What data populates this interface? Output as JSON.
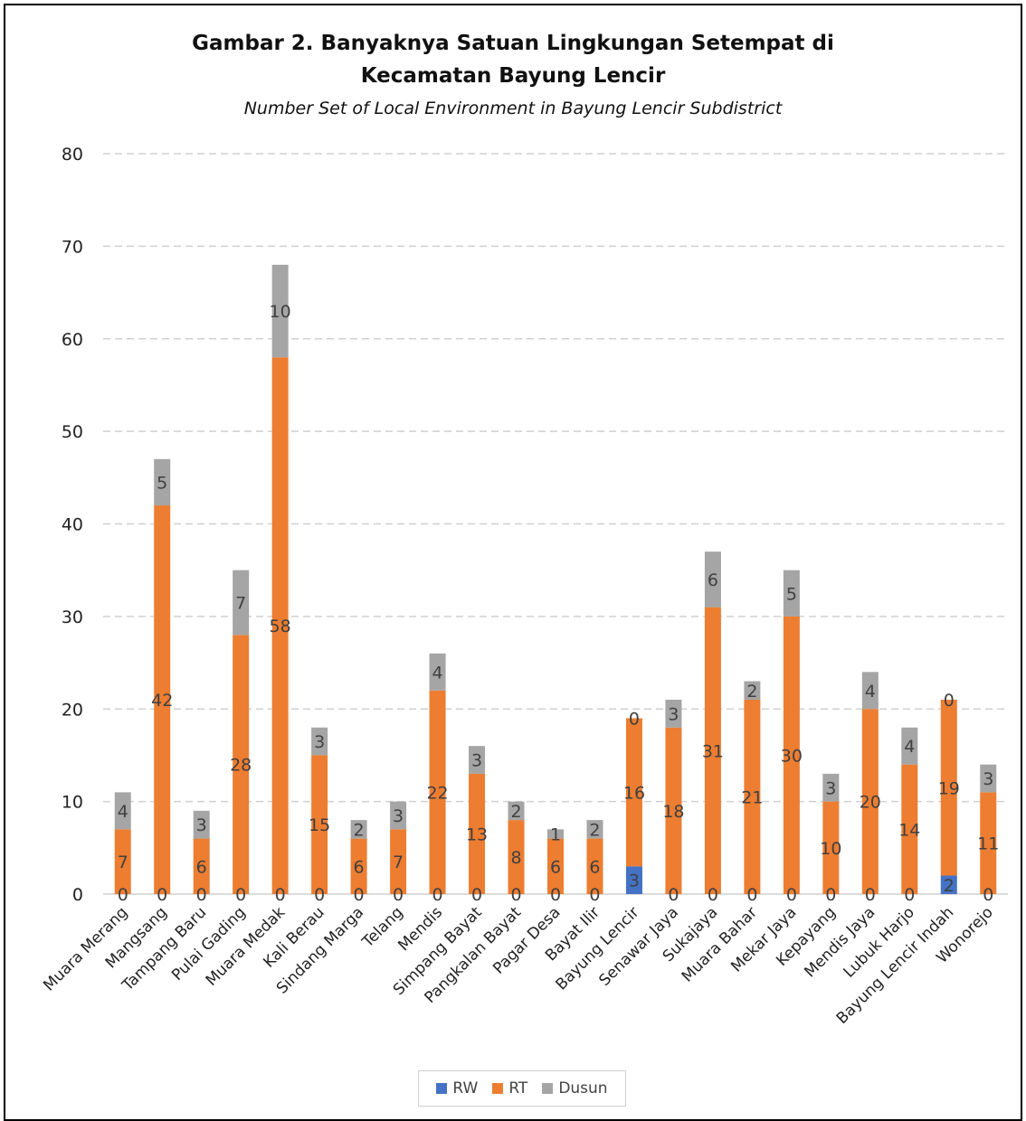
{
  "chart_data": {
    "type": "bar",
    "stacked": true,
    "title": "Gambar 2. Banyaknya Satuan Lingkungan Setempat di Kecamatan Bayung Lencir",
    "title_lines": [
      "Gambar 2. Banyaknya Satuan Lingkungan Setempat di",
      "Kecamatan Bayung Lencir"
    ],
    "subtitle": "Number Set of Local Environment in  Bayung Lencir Subdistrict",
    "xlabel": "",
    "ylabel": "",
    "ylim": [
      0,
      80
    ],
    "yticks": [
      0,
      10,
      20,
      30,
      40,
      50,
      60,
      70,
      80
    ],
    "grid": true,
    "legend_position": "bottom",
    "categories": [
      "Muara Merang",
      "Mangsang",
      "Tampang Baru",
      "Pulai Gading",
      "Muara Medak",
      "Kali Berau",
      "Sindang Marga",
      "Telang",
      "Mendis",
      "Simpang Bayat",
      "Pangkalan Bayat",
      "Pagar Desa",
      "Bayat Ilir",
      "Bayung Lencir",
      "Senawar Jaya",
      "Sukajaya",
      "Muara Bahar",
      "Mekar Jaya",
      "Kepayang",
      "Mendis Jaya",
      "Lubuk Harjo",
      "Bayung Lencir Indah",
      "Wonorejo"
    ],
    "series": [
      {
        "name": "RW",
        "color": "#4472c4",
        "values": [
          0,
          0,
          0,
          0,
          0,
          0,
          0,
          0,
          0,
          0,
          0,
          0,
          0,
          3,
          0,
          0,
          0,
          0,
          0,
          0,
          0,
          2,
          0
        ]
      },
      {
        "name": "RT",
        "color": "#ed7d31",
        "values": [
          7,
          42,
          6,
          28,
          58,
          15,
          6,
          7,
          22,
          13,
          8,
          6,
          6,
          16,
          18,
          31,
          21,
          30,
          10,
          20,
          14,
          19,
          11
        ]
      },
      {
        "name": "Dusun",
        "color": "#a5a5a5",
        "values": [
          4,
          5,
          3,
          7,
          10,
          3,
          2,
          3,
          4,
          3,
          2,
          1,
          2,
          0,
          3,
          6,
          2,
          5,
          3,
          4,
          4,
          0,
          3
        ]
      }
    ]
  }
}
